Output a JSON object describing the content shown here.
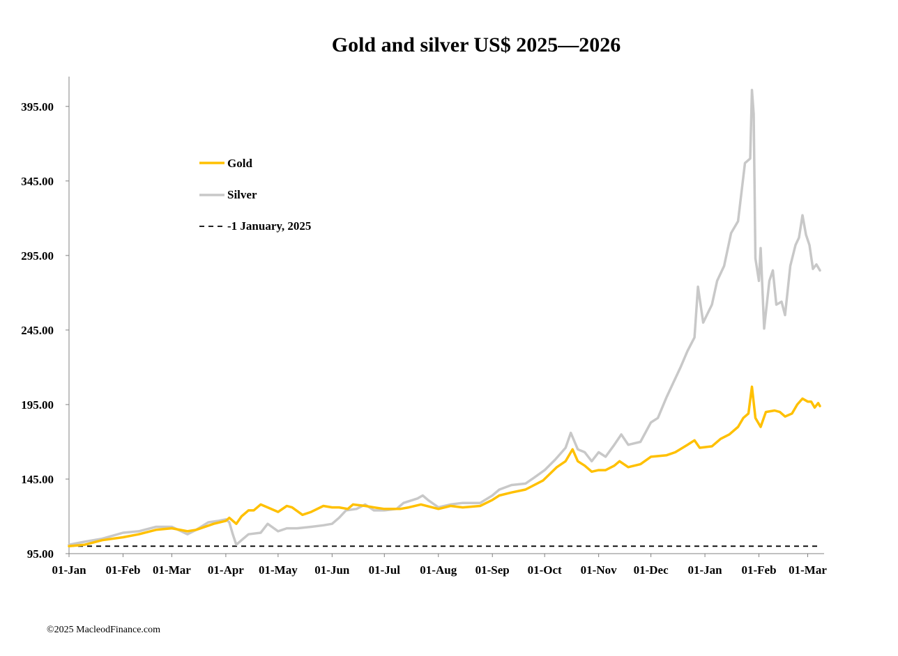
{
  "title": "Gold and silver  US$ 2025—2026",
  "footer": "©2025 MacleodFinance.com",
  "colors": {
    "gold": "#FFC000",
    "silver": "#C8C8C8",
    "baseline": "#000000",
    "axis": "#808080"
  },
  "chart_data": {
    "type": "line",
    "title": "Gold and silver  US$ 2025—2026",
    "xlabel": "",
    "ylabel": "",
    "x_ticks": [
      "01-Jan",
      "01-Feb",
      "01-Mar",
      "01-Apr",
      "01-May",
      "01-Jun",
      "01-Jul",
      "01-Aug",
      "01-Sep",
      "01-Oct",
      "01-Nov",
      "01-Dec",
      "01-Jan",
      "01-Feb",
      "01-Mar"
    ],
    "y_ticks": [
      "95.00",
      "145.00",
      "195.00",
      "245.00",
      "295.00",
      "345.00",
      "395.00"
    ],
    "ylim": [
      95,
      415
    ],
    "grid": false,
    "legend_position": "upper-left",
    "series": [
      {
        "name": "Gold",
        "color": "#FFC000",
        "points": [
          [
            "2025-01-01",
            100
          ],
          [
            "2025-01-10",
            101
          ],
          [
            "2025-01-20",
            104
          ],
          [
            "2025-02-01",
            106
          ],
          [
            "2025-02-10",
            108
          ],
          [
            "2025-02-20",
            111
          ],
          [
            "2025-03-01",
            112
          ],
          [
            "2025-03-10",
            110
          ],
          [
            "2025-03-15",
            111
          ],
          [
            "2025-03-25",
            115
          ],
          [
            "2025-04-01",
            117
          ],
          [
            "2025-04-03",
            119
          ],
          [
            "2025-04-07",
            115
          ],
          [
            "2025-04-10",
            120
          ],
          [
            "2025-04-14",
            124
          ],
          [
            "2025-04-17",
            124
          ],
          [
            "2025-04-21",
            128
          ],
          [
            "2025-04-25",
            126
          ],
          [
            "2025-05-01",
            123
          ],
          [
            "2025-05-06",
            127
          ],
          [
            "2025-05-09",
            126
          ],
          [
            "2025-05-15",
            121
          ],
          [
            "2025-05-20",
            123
          ],
          [
            "2025-05-27",
            127
          ],
          [
            "2025-06-01",
            126
          ],
          [
            "2025-06-05",
            126
          ],
          [
            "2025-06-10",
            125
          ],
          [
            "2025-06-13",
            128
          ],
          [
            "2025-06-20",
            127
          ],
          [
            "2025-06-25",
            126
          ],
          [
            "2025-07-01",
            125
          ],
          [
            "2025-07-10",
            125
          ],
          [
            "2025-07-15",
            126
          ],
          [
            "2025-07-22",
            128
          ],
          [
            "2025-08-01",
            125
          ],
          [
            "2025-08-08",
            127
          ],
          [
            "2025-08-15",
            126
          ],
          [
            "2025-08-25",
            127
          ],
          [
            "2025-09-01",
            131
          ],
          [
            "2025-09-05",
            134
          ],
          [
            "2025-09-12",
            136
          ],
          [
            "2025-09-20",
            138
          ],
          [
            "2025-09-30",
            144
          ],
          [
            "2025-10-08",
            153
          ],
          [
            "2025-10-13",
            157
          ],
          [
            "2025-10-17",
            165
          ],
          [
            "2025-10-20",
            157
          ],
          [
            "2025-10-24",
            154
          ],
          [
            "2025-10-28",
            150
          ],
          [
            "2025-11-01",
            151
          ],
          [
            "2025-11-05",
            151
          ],
          [
            "2025-11-10",
            154
          ],
          [
            "2025-11-13",
            157
          ],
          [
            "2025-11-18",
            153
          ],
          [
            "2025-11-25",
            155
          ],
          [
            "2025-12-01",
            160
          ],
          [
            "2025-12-10",
            161
          ],
          [
            "2025-12-15",
            163
          ],
          [
            "2025-12-22",
            168
          ],
          [
            "2025-12-26",
            171
          ],
          [
            "2025-12-29",
            166
          ],
          [
            "2026-01-05",
            167
          ],
          [
            "2026-01-10",
            172
          ],
          [
            "2026-01-15",
            175
          ],
          [
            "2026-01-20",
            180
          ],
          [
            "2026-01-23",
            186
          ],
          [
            "2026-01-26",
            189
          ],
          [
            "2026-01-28",
            207
          ],
          [
            "2026-01-30",
            186
          ],
          [
            "2026-02-02",
            180
          ],
          [
            "2026-02-05",
            190
          ],
          [
            "2026-02-10",
            191
          ],
          [
            "2026-02-13",
            190
          ],
          [
            "2026-02-16",
            187
          ],
          [
            "2026-02-20",
            189
          ],
          [
            "2026-02-23",
            195
          ],
          [
            "2026-02-26",
            199
          ],
          [
            "2026-03-01",
            197
          ],
          [
            "2026-03-03",
            197
          ],
          [
            "2026-03-05",
            193
          ],
          [
            "2026-03-07",
            196
          ],
          [
            "2026-03-08",
            194
          ]
        ]
      },
      {
        "name": "Silver",
        "color": "#C8C8C8",
        "points": [
          [
            "2025-01-01",
            101
          ],
          [
            "2025-01-10",
            103
          ],
          [
            "2025-01-20",
            105
          ],
          [
            "2025-02-01",
            109
          ],
          [
            "2025-02-10",
            110
          ],
          [
            "2025-02-20",
            113
          ],
          [
            "2025-03-01",
            113
          ],
          [
            "2025-03-10",
            108
          ],
          [
            "2025-03-15",
            111
          ],
          [
            "2025-03-22",
            116
          ],
          [
            "2025-03-28",
            117
          ],
          [
            "2025-04-01",
            118
          ],
          [
            "2025-04-03",
            116
          ],
          [
            "2025-04-05",
            108
          ],
          [
            "2025-04-07",
            101
          ],
          [
            "2025-04-10",
            104
          ],
          [
            "2025-04-14",
            108
          ],
          [
            "2025-04-21",
            109
          ],
          [
            "2025-04-25",
            115
          ],
          [
            "2025-05-01",
            110
          ],
          [
            "2025-05-06",
            112
          ],
          [
            "2025-05-12",
            112
          ],
          [
            "2025-05-20",
            113
          ],
          [
            "2025-05-27",
            114
          ],
          [
            "2025-06-01",
            115
          ],
          [
            "2025-06-05",
            119
          ],
          [
            "2025-06-09",
            124
          ],
          [
            "2025-06-15",
            125
          ],
          [
            "2025-06-20",
            128
          ],
          [
            "2025-06-25",
            124
          ],
          [
            "2025-07-01",
            124
          ],
          [
            "2025-07-08",
            125
          ],
          [
            "2025-07-12",
            129
          ],
          [
            "2025-07-20",
            132
          ],
          [
            "2025-07-23",
            134
          ],
          [
            "2025-07-26",
            131
          ],
          [
            "2025-08-01",
            126
          ],
          [
            "2025-08-08",
            128
          ],
          [
            "2025-08-15",
            129
          ],
          [
            "2025-08-25",
            129
          ],
          [
            "2025-09-01",
            134
          ],
          [
            "2025-09-05",
            138
          ],
          [
            "2025-09-12",
            141
          ],
          [
            "2025-09-20",
            142
          ],
          [
            "2025-09-25",
            146
          ],
          [
            "2025-10-01",
            151
          ],
          [
            "2025-10-07",
            158
          ],
          [
            "2025-10-10",
            162
          ],
          [
            "2025-10-13",
            166
          ],
          [
            "2025-10-16",
            176
          ],
          [
            "2025-10-20",
            165
          ],
          [
            "2025-10-24",
            163
          ],
          [
            "2025-10-28",
            157
          ],
          [
            "2025-11-01",
            163
          ],
          [
            "2025-11-05",
            160
          ],
          [
            "2025-11-10",
            168
          ],
          [
            "2025-11-14",
            175
          ],
          [
            "2025-11-18",
            168
          ],
          [
            "2025-11-25",
            170
          ],
          [
            "2025-12-01",
            183
          ],
          [
            "2025-12-05",
            186
          ],
          [
            "2025-12-10",
            200
          ],
          [
            "2025-12-14",
            210
          ],
          [
            "2025-12-18",
            220
          ],
          [
            "2025-12-22",
            231
          ],
          [
            "2025-12-26",
            240
          ],
          [
            "2025-12-28",
            274
          ],
          [
            "2025-12-31",
            250
          ],
          [
            "2026-01-05",
            262
          ],
          [
            "2026-01-08",
            278
          ],
          [
            "2026-01-12",
            288
          ],
          [
            "2026-01-16",
            310
          ],
          [
            "2026-01-20",
            318
          ],
          [
            "2026-01-24",
            357
          ],
          [
            "2026-01-27",
            360
          ],
          [
            "2026-01-28",
            406
          ],
          [
            "2026-01-29",
            390
          ],
          [
            "2026-01-30",
            293
          ],
          [
            "2026-02-01",
            278
          ],
          [
            "2026-02-02",
            300
          ],
          [
            "2026-02-04",
            246
          ],
          [
            "2026-02-07",
            278
          ],
          [
            "2026-02-09",
            285
          ],
          [
            "2026-02-11",
            262
          ],
          [
            "2026-02-14",
            264
          ],
          [
            "2026-02-16",
            255
          ],
          [
            "2026-02-19",
            288
          ],
          [
            "2026-02-22",
            302
          ],
          [
            "2026-02-24",
            307
          ],
          [
            "2026-02-26",
            322
          ],
          [
            "2026-02-28",
            309
          ],
          [
            "2026-03-02",
            302
          ],
          [
            "2026-03-04",
            286
          ],
          [
            "2026-03-06",
            289
          ],
          [
            "2026-03-08",
            285
          ]
        ]
      },
      {
        "name": "-1 January, 2025",
        "color": "#000000",
        "dashed": true,
        "points": [
          [
            "2025-01-01",
            100
          ],
          [
            "2026-03-08",
            100
          ]
        ]
      }
    ]
  }
}
